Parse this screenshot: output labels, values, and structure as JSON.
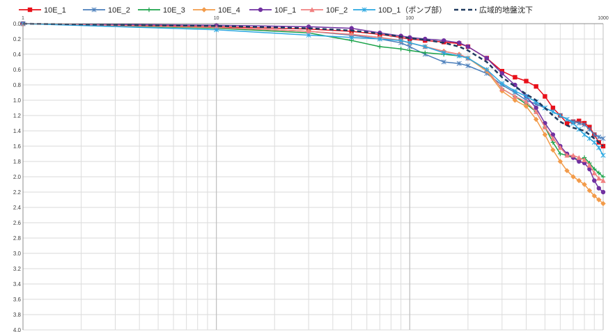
{
  "chart_data": {
    "type": "line",
    "title": "",
    "xlabel": "",
    "ylabel": "",
    "x_scale": "log",
    "xlim": [
      1,
      1000
    ],
    "ylim": [
      0,
      4
    ],
    "y_reversed": true,
    "grid": true,
    "legend_position": "top",
    "x_ticks": [
      "1",
      "10",
      "100",
      "1000"
    ],
    "y_ticks": [
      "0.0",
      "0.2",
      "0.4",
      "0.6",
      "0.8",
      "1.0",
      "1.2",
      "1.4",
      "1.6",
      "1.8",
      "2.0",
      "2.2",
      "2.4",
      "2.6",
      "2.8",
      "3.0",
      "3.2",
      "3.4",
      "3.6",
      "3.8",
      "4.0"
    ],
    "series": [
      {
        "name": "10E_1",
        "color": "#e8101a",
        "marker": "square",
        "dashed": false,
        "x": [
          1,
          10,
          30,
          50,
          70,
          90,
          100,
          120,
          150,
          180,
          200,
          250,
          300,
          350,
          400,
          450,
          500,
          550,
          600,
          650,
          700,
          750,
          800,
          850,
          900,
          950,
          1000
        ],
        "y": [
          0,
          0.04,
          0.07,
          0.1,
          0.14,
          0.18,
          0.2,
          0.22,
          0.24,
          0.26,
          0.3,
          0.45,
          0.62,
          0.7,
          0.75,
          0.82,
          0.95,
          1.1,
          1.2,
          1.3,
          1.28,
          1.27,
          1.3,
          1.35,
          1.45,
          1.55,
          1.6
        ]
      },
      {
        "name": "10E_2",
        "color": "#4a7ebb",
        "marker": "star",
        "dashed": false,
        "x": [
          1,
          10,
          30,
          50,
          70,
          90,
          100,
          120,
          150,
          180,
          200,
          250,
          300,
          350,
          400,
          450,
          500,
          550,
          600,
          650,
          700,
          750,
          800,
          850,
          900,
          950,
          1000
        ],
        "y": [
          0,
          0.05,
          0.1,
          0.15,
          0.2,
          0.25,
          0.3,
          0.4,
          0.5,
          0.52,
          0.55,
          0.65,
          0.8,
          0.9,
          1.0,
          1.05,
          1.1,
          1.15,
          1.2,
          1.25,
          1.28,
          1.3,
          1.32,
          1.38,
          1.45,
          1.48,
          1.5
        ]
      },
      {
        "name": "10E_3",
        "color": "#1ca34a",
        "marker": "plus",
        "dashed": false,
        "x": [
          1,
          10,
          30,
          50,
          70,
          90,
          100,
          120,
          150,
          180,
          200,
          250,
          300,
          350,
          400,
          450,
          500,
          550,
          600,
          650,
          700,
          750,
          800,
          850,
          900,
          950,
          1000
        ],
        "y": [
          0,
          0.06,
          0.12,
          0.22,
          0.3,
          0.33,
          0.35,
          0.38,
          0.4,
          0.42,
          0.45,
          0.6,
          0.85,
          0.95,
          1.05,
          1.15,
          1.35,
          1.55,
          1.7,
          1.72,
          1.75,
          1.78,
          1.75,
          1.82,
          1.9,
          1.95,
          2.0
        ]
      },
      {
        "name": "10E_4",
        "color": "#f29b4a",
        "marker": "diamond",
        "dashed": false,
        "x": [
          1,
          10,
          30,
          50,
          70,
          90,
          100,
          120,
          150,
          180,
          200,
          250,
          300,
          350,
          400,
          450,
          500,
          550,
          600,
          650,
          700,
          750,
          800,
          850,
          900,
          950,
          1000
        ],
        "y": [
          0,
          0.05,
          0.1,
          0.14,
          0.18,
          0.22,
          0.25,
          0.3,
          0.36,
          0.4,
          0.45,
          0.62,
          0.88,
          1.0,
          1.08,
          1.25,
          1.45,
          1.65,
          1.8,
          1.92,
          2.0,
          2.05,
          2.1,
          2.18,
          2.25,
          2.3,
          2.35
        ]
      },
      {
        "name": "10F_1",
        "color": "#7030a0",
        "marker": "circle",
        "dashed": false,
        "x": [
          1,
          10,
          30,
          50,
          70,
          90,
          100,
          120,
          150,
          180,
          200,
          250,
          300,
          350,
          400,
          450,
          500,
          550,
          600,
          650,
          700,
          750,
          800,
          850,
          900,
          950,
          1000
        ],
        "y": [
          0,
          0.02,
          0.04,
          0.06,
          0.12,
          0.16,
          0.18,
          0.2,
          0.22,
          0.25,
          0.3,
          0.45,
          0.65,
          0.8,
          0.95,
          1.1,
          1.3,
          1.45,
          1.6,
          1.7,
          1.75,
          1.8,
          1.82,
          1.9,
          2.05,
          2.15,
          2.2
        ]
      },
      {
        "name": "10F_2",
        "color": "#f08080",
        "marker": "triangle",
        "dashed": false,
        "x": [
          1,
          10,
          30,
          50,
          70,
          90,
          100,
          120,
          150,
          180,
          200,
          250,
          300,
          350,
          400,
          450,
          500,
          550,
          600,
          650,
          700,
          750,
          800,
          850,
          900,
          950,
          1000
        ],
        "y": [
          0,
          0.05,
          0.1,
          0.14,
          0.18,
          0.22,
          0.25,
          0.3,
          0.36,
          0.4,
          0.45,
          0.6,
          0.85,
          0.95,
          1.02,
          1.15,
          1.35,
          1.5,
          1.62,
          1.72,
          1.72,
          1.75,
          1.78,
          1.85,
          1.95,
          2.02,
          2.05
        ]
      },
      {
        "name": "10D_1（ポンプ部）",
        "color": "#2aa7e0",
        "marker": "star",
        "dashed": false,
        "x": [
          1,
          10,
          30,
          50,
          70,
          90,
          100,
          120,
          150,
          180,
          200,
          250,
          300,
          350,
          400,
          450,
          500,
          550,
          600,
          650,
          700,
          750,
          800,
          850,
          900,
          950,
          1000
        ],
        "y": [
          0,
          0.08,
          0.15,
          0.18,
          0.2,
          0.22,
          0.25,
          0.3,
          0.38,
          0.42,
          0.45,
          0.6,
          0.78,
          0.88,
          0.95,
          1.02,
          1.1,
          1.15,
          1.2,
          1.25,
          1.3,
          1.38,
          1.45,
          1.5,
          1.55,
          1.62,
          1.72
        ]
      },
      {
        "name": "広域的地盤沈下",
        "color": "#1f3a5f",
        "marker": "none",
        "dashed": true,
        "x": [
          1,
          10,
          30,
          50,
          70,
          90,
          100,
          120,
          150,
          180,
          200,
          250,
          300,
          350,
          400,
          450,
          500,
          550,
          600,
          650,
          700,
          750,
          800,
          850,
          900,
          950,
          1000
        ],
        "y": [
          0,
          0.03,
          0.06,
          0.09,
          0.13,
          0.17,
          0.19,
          0.21,
          0.25,
          0.3,
          0.35,
          0.5,
          0.7,
          0.82,
          0.92,
          1.0,
          1.1,
          1.2,
          1.28,
          1.33,
          1.36,
          1.38,
          1.4,
          1.45,
          1.5,
          1.55,
          1.6
        ]
      }
    ]
  }
}
